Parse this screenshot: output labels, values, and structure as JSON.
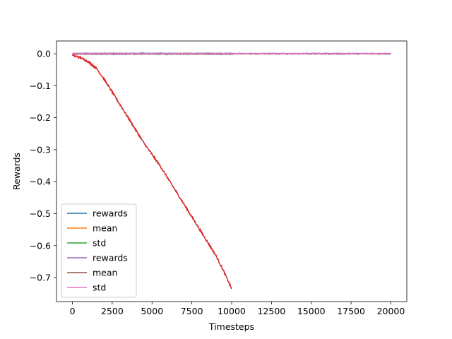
{
  "chart_data": {
    "type": "line",
    "title": "",
    "xlabel": "Timesteps",
    "ylabel": "Rewards",
    "xlim": [
      -1000,
      21000
    ],
    "ylim": [
      -0.775,
      0.04
    ],
    "x_ticks": [
      0,
      2500,
      5000,
      7500,
      10000,
      12500,
      15000,
      17500,
      20000
    ],
    "y_ticks": [
      0.0,
      -0.1,
      -0.2,
      -0.3,
      -0.4,
      -0.5,
      -0.6,
      -0.7
    ],
    "grid": false,
    "legend_position": "lower-left",
    "series": [
      {
        "name": "rewards",
        "color": "#1f77b4",
        "x_range": [
          0,
          10000
        ],
        "trend": [
          [
            0,
            0.0
          ],
          [
            10000,
            0.0
          ]
        ],
        "noise": 0.002
      },
      {
        "name": "mean",
        "color": "#ff7f0e",
        "x_range": [
          0,
          10000
        ],
        "trend": [
          [
            0,
            -0.0005
          ],
          [
            10000,
            -0.0005
          ]
        ],
        "noise": 0.0005
      },
      {
        "name": "std",
        "color": "#2ca02c",
        "x_range": [
          0,
          10000
        ],
        "trend": [
          [
            0,
            0.001
          ],
          [
            10000,
            0.001
          ]
        ],
        "noise": 0.0005
      },
      {
        "name": "rewards",
        "color": "#9467bd",
        "x_range": [
          0,
          20000
        ],
        "trend": [
          [
            0,
            0.0
          ],
          [
            20000,
            0.0
          ]
        ],
        "noise": 0.002
      },
      {
        "name": "mean",
        "color": "#8c564b",
        "x_range": [
          0,
          20000
        ],
        "trend": [
          [
            0,
            0.0
          ],
          [
            20000,
            0.0
          ]
        ],
        "noise": 0.0005
      },
      {
        "name": "std",
        "color": "#e377c2",
        "x_range": [
          0,
          20000
        ],
        "trend": [
          [
            0,
            0.001
          ],
          [
            20000,
            0.001
          ]
        ],
        "noise": 0.001
      },
      {
        "name": "",
        "color": "#d62728",
        "x_range": [
          0,
          10000
        ],
        "trend": [
          [
            0,
            -0.005
          ],
          [
            500,
            -0.012
          ],
          [
            1000,
            -0.025
          ],
          [
            1500,
            -0.045
          ],
          [
            2000,
            -0.08
          ],
          [
            2500,
            -0.12
          ],
          [
            3000,
            -0.16
          ],
          [
            3500,
            -0.2
          ],
          [
            4000,
            -0.24
          ],
          [
            4500,
            -0.28
          ],
          [
            5000,
            -0.315
          ],
          [
            5500,
            -0.35
          ],
          [
            6000,
            -0.39
          ],
          [
            6500,
            -0.43
          ],
          [
            7000,
            -0.47
          ],
          [
            7500,
            -0.51
          ],
          [
            8000,
            -0.55
          ],
          [
            8500,
            -0.59
          ],
          [
            9000,
            -0.63
          ],
          [
            9500,
            -0.68
          ],
          [
            10000,
            -0.735
          ]
        ],
        "noise": 0.003
      }
    ],
    "legend": [
      {
        "label": "rewards",
        "color": "#1f77b4"
      },
      {
        "label": "mean",
        "color": "#ff7f0e"
      },
      {
        "label": "std",
        "color": "#2ca02c"
      },
      {
        "label": "rewards",
        "color": "#9467bd"
      },
      {
        "label": "mean",
        "color": "#8c564b"
      },
      {
        "label": "std",
        "color": "#e377c2"
      }
    ]
  }
}
